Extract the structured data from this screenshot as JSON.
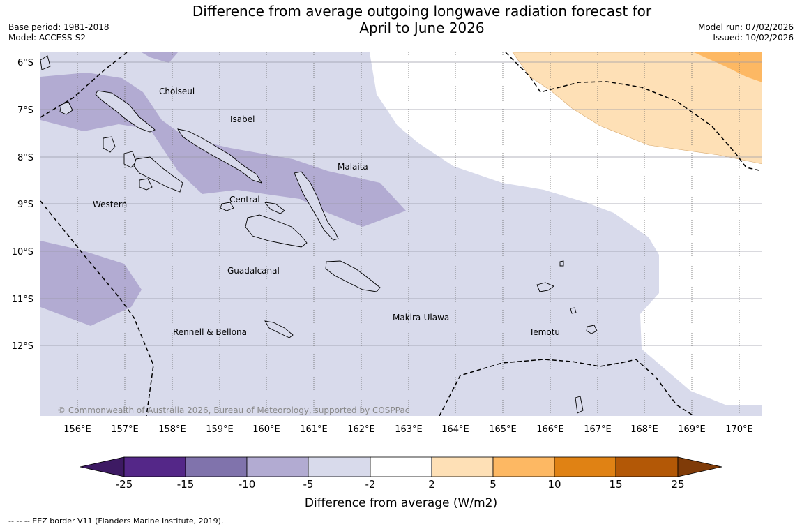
{
  "title_line1": "Difference from average outgoing longwave radiation forecast for",
  "title_line2": "April to June 2026",
  "meta": {
    "base_period": "Base period: 1981-2018",
    "model": "Model: ACCESS-S2",
    "model_run": "Model run: 07/02/2026",
    "issued": "Issued: 10/02/2026"
  },
  "copyright": "© Commonwealth of Australia 2026, Bureau of Meteorology, supported by COSPPac",
  "footnote": "--  --  -- EEZ border V11 (Flanders Marine Institute, 2019).",
  "map": {
    "lat_labels": [
      "6°S",
      "7°S",
      "8°S",
      "9°S",
      "10°S",
      "11°S",
      "12°S"
    ],
    "lon_labels": [
      "156°E",
      "157°E",
      "158°E",
      "159°E",
      "160°E",
      "161°E",
      "162°E",
      "163°E",
      "164°E",
      "165°E",
      "166°E",
      "167°E",
      "168°E",
      "169°E",
      "170°E"
    ],
    "regions": [
      "Choiseul",
      "Isabel",
      "Malaita",
      "Western",
      "Central",
      "Guadalcanal",
      "Makira-Ulawa",
      "Rennell & Bellona",
      "Temotu"
    ]
  },
  "colorbar": {
    "label": "Difference from average (W/m2)",
    "ticks": [
      "-25",
      "-15",
      "-10",
      "-5",
      "-2",
      "2",
      "5",
      "10",
      "15",
      "25"
    ],
    "colors": [
      "#3d1a63",
      "#542788",
      "#8073ac",
      "#b2abd2",
      "#d8daeb",
      "#ffffff",
      "#fee0b6",
      "#fdb863",
      "#e08214",
      "#b35806",
      "#7f3b08"
    ]
  }
}
